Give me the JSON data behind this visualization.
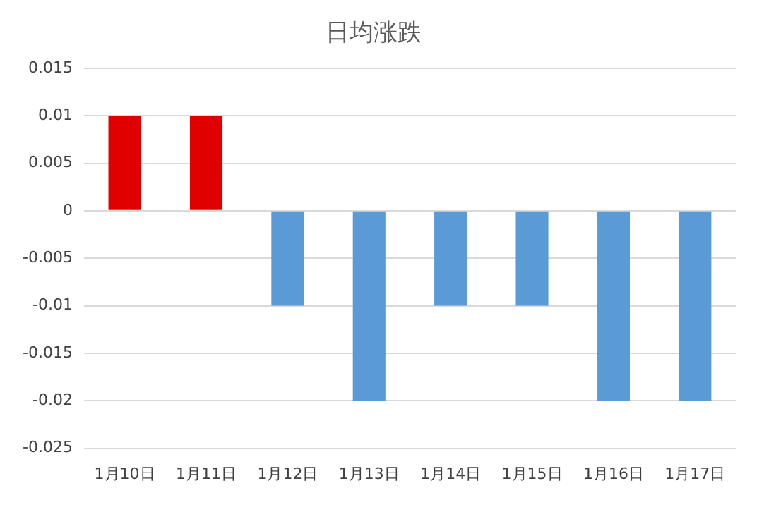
{
  "chart_data": {
    "type": "bar",
    "title": "日均涨跌",
    "categories": [
      "1月10日",
      "1月11日",
      "1月12日",
      "1月13日",
      "1月14日",
      "1月15日",
      "1月16日",
      "1月17日"
    ],
    "values": [
      0.01,
      0.01,
      -0.01,
      -0.02,
      -0.01,
      -0.01,
      -0.02,
      -0.02
    ],
    "colors": [
      "#e00000",
      "#e00000",
      "#5b9bd5",
      "#5b9bd5",
      "#5b9bd5",
      "#5b9bd5",
      "#5b9bd5",
      "#5b9bd5"
    ],
    "ylim": [
      -0.025,
      0.015
    ],
    "yticks": [
      -0.025,
      -0.02,
      -0.015,
      -0.01,
      -0.005,
      0,
      0.005,
      0.01,
      0.015
    ],
    "grid": "y",
    "legend": false
  }
}
